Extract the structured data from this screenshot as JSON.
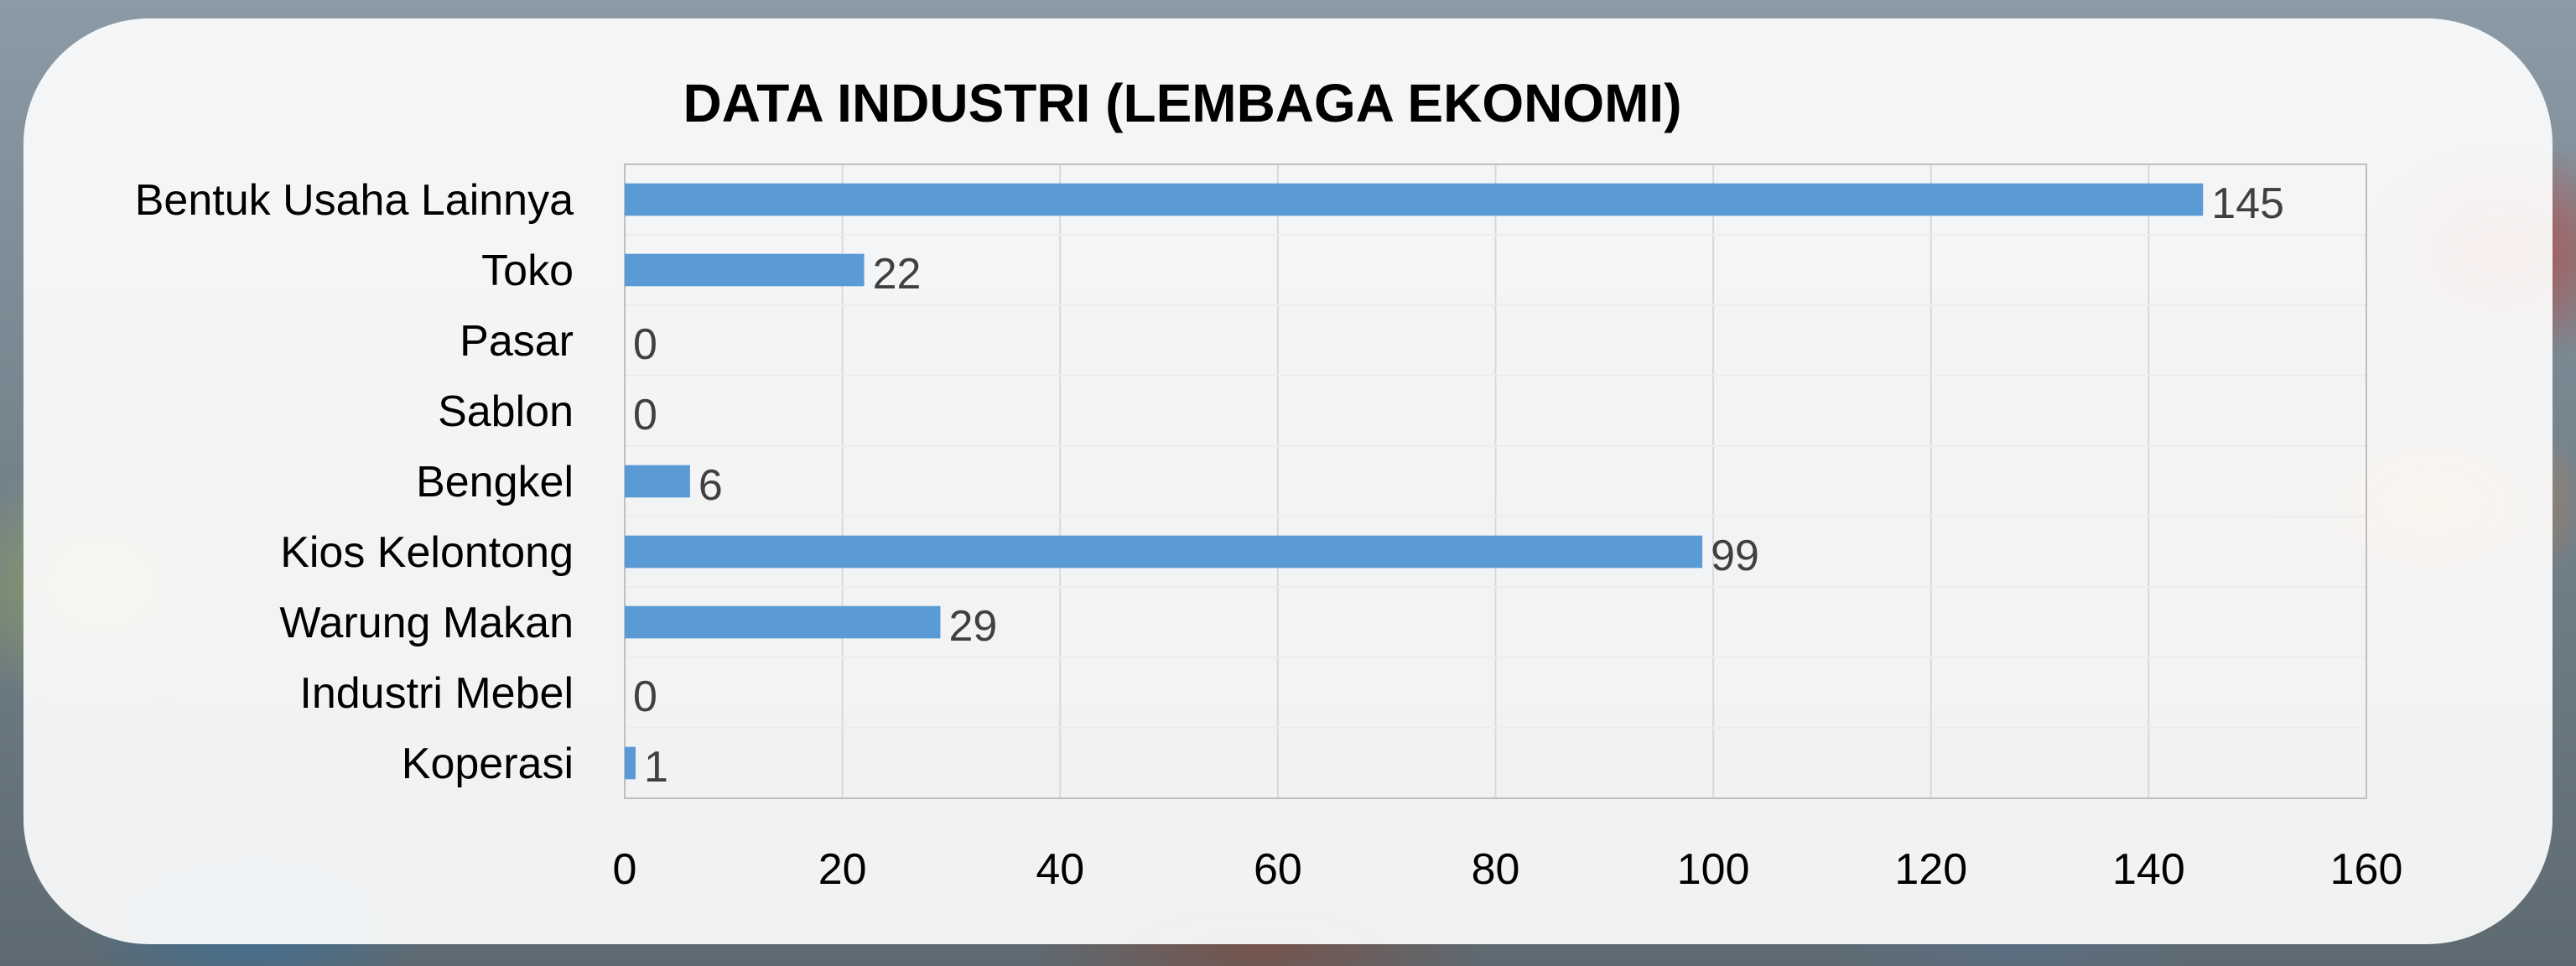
{
  "chart_data": {
    "type": "bar",
    "orientation": "horizontal",
    "title": "DATA INDUSTRI (LEMBAGA EKONOMI)",
    "categories": [
      "Bentuk Usaha Lainnya",
      "Toko",
      "Pasar",
      "Sablon",
      "Bengkel",
      "Kios Kelontong",
      "Warung Makan",
      "Industri Mebel",
      "Koperasi"
    ],
    "values": [
      145,
      22,
      0,
      0,
      6,
      99,
      29,
      0,
      1
    ],
    "xlim": [
      0,
      160
    ],
    "xticks": [
      "0",
      "20",
      "40",
      "60",
      "80",
      "100",
      "120",
      "140",
      "160"
    ],
    "data_labels": [
      "145",
      "22",
      "0",
      "0",
      "6",
      "99",
      "29",
      "0",
      "1"
    ],
    "grid": true,
    "bar_color": "#5b9bd5",
    "xlabel": "",
    "ylabel": ""
  }
}
